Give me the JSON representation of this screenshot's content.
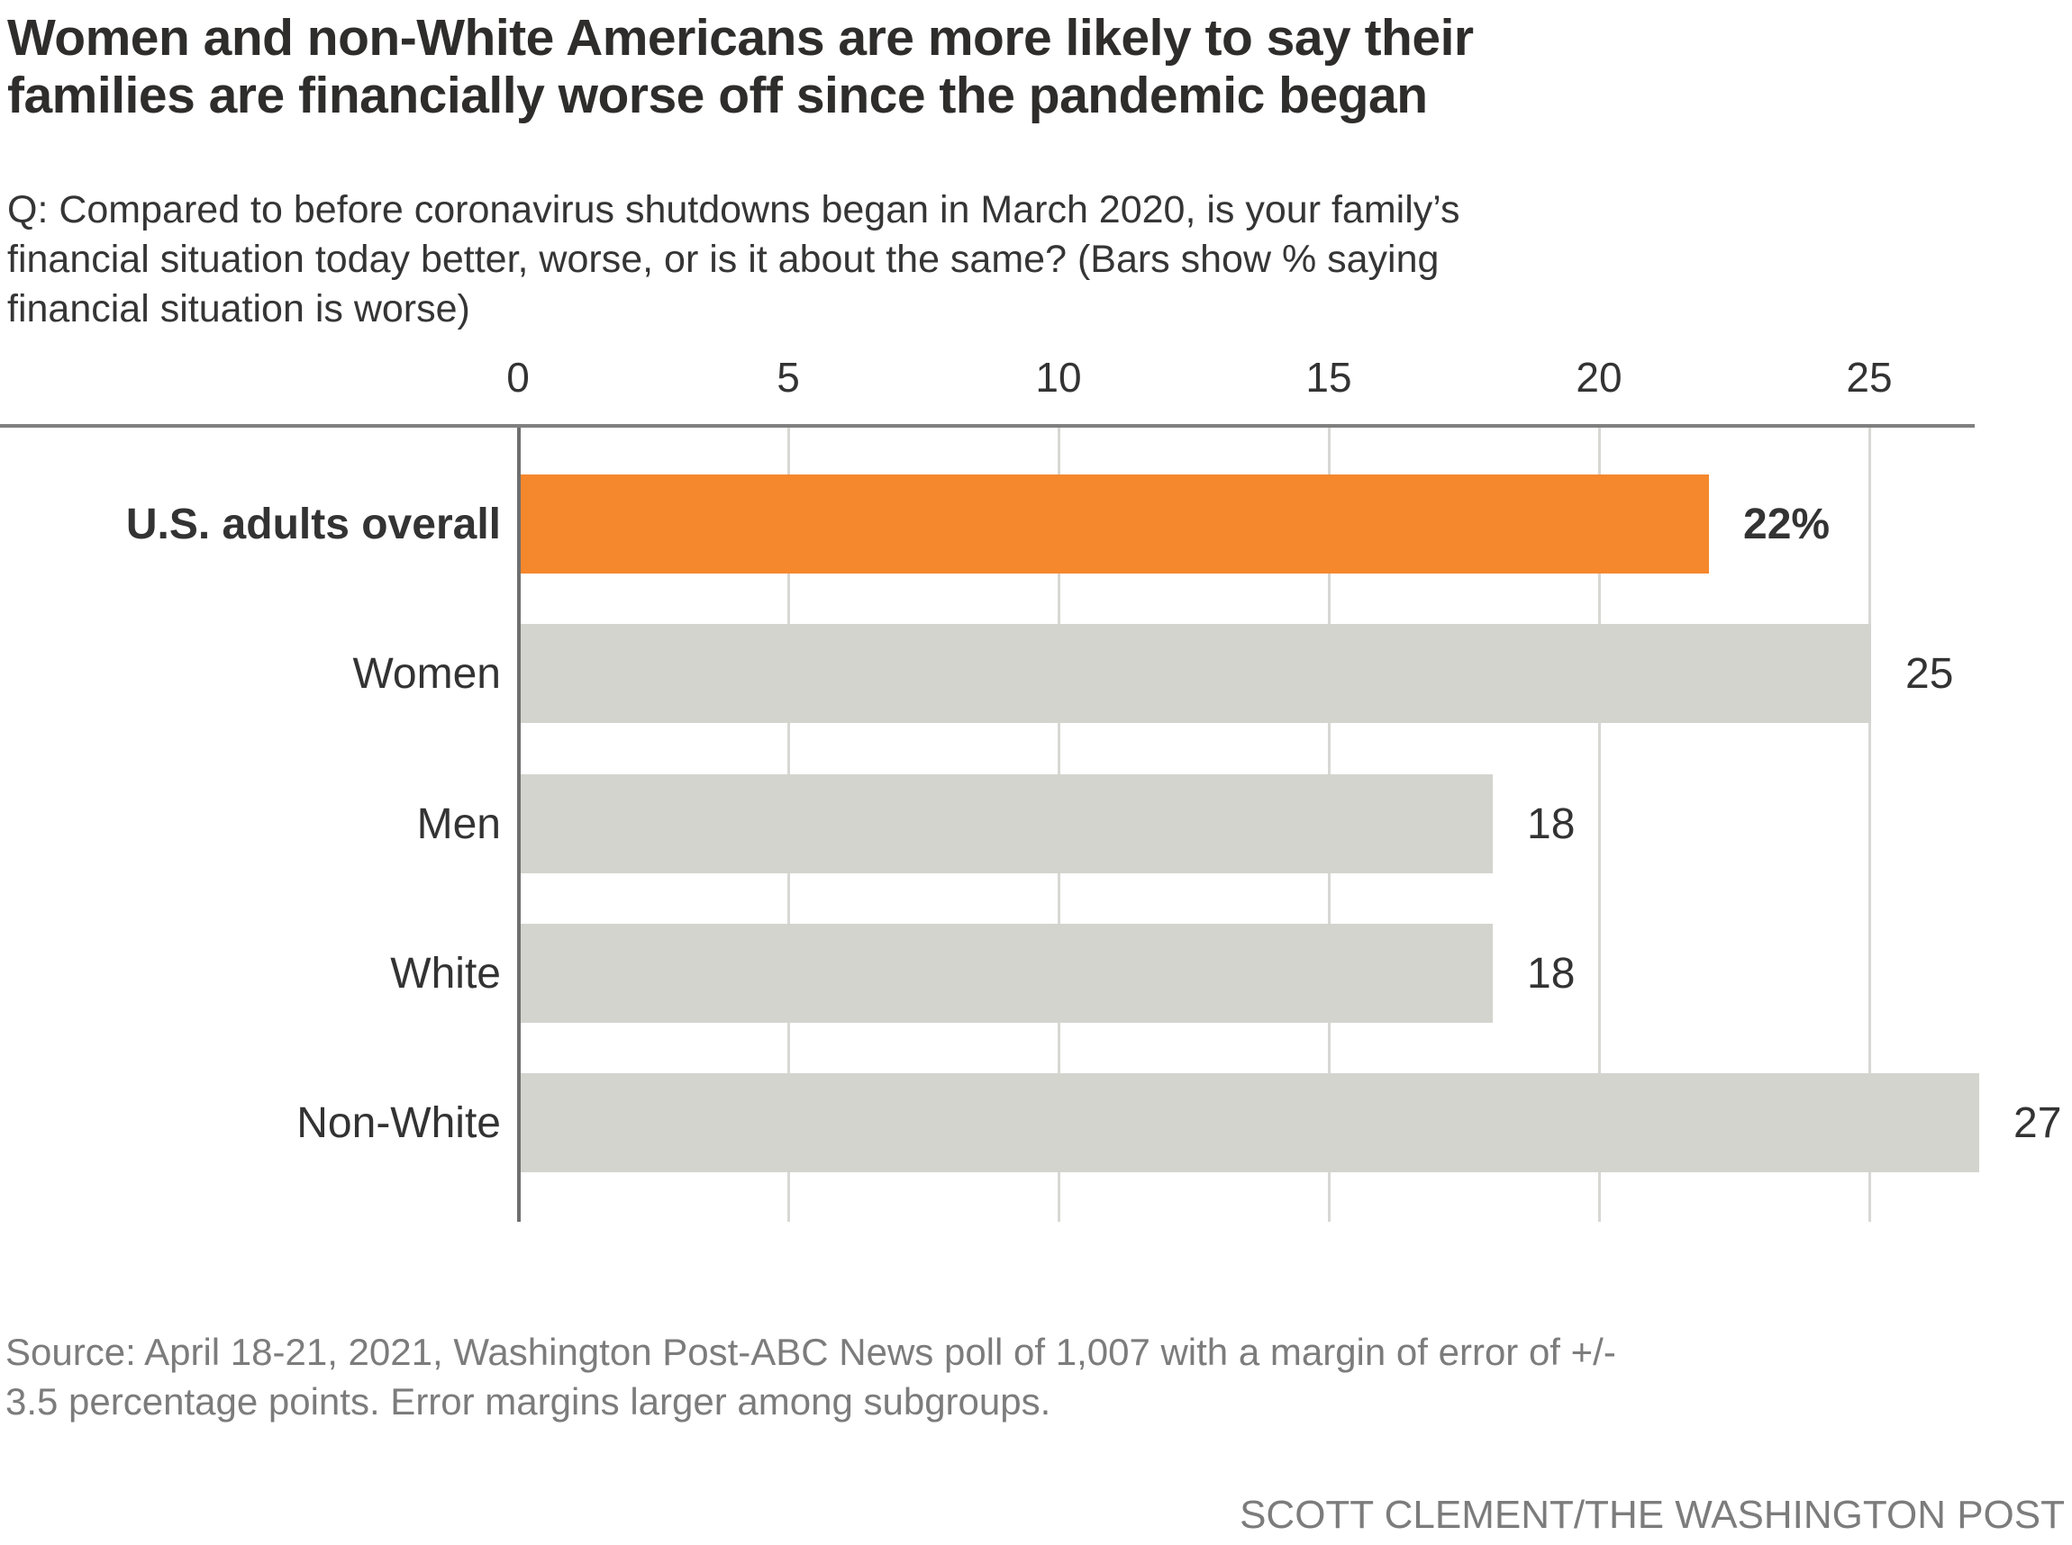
{
  "header": {
    "title_lines": [
      "Women and non-White Americans are more likely to say their",
      "families are financially worse off since the pandemic began"
    ],
    "subtitle_lines": [
      "Q: Compared to before coronavirus shutdowns began in March 2020, is your family’s",
      "financial situation today better, worse, or is it about the same? (Bars show % saying",
      "financial situation is worse)"
    ]
  },
  "chart_data": {
    "type": "bar",
    "orientation": "horizontal",
    "categories": [
      "U.S. adults overall",
      "Women",
      "Men",
      "White",
      "Non-White"
    ],
    "values": [
      22,
      25,
      18,
      18,
      27
    ],
    "value_labels": [
      "22%",
      "25",
      "18",
      "18",
      "27"
    ],
    "emphasized": [
      true,
      false,
      false,
      false,
      false
    ],
    "highlighted_category": "U.S. adults overall",
    "xticks": [
      0,
      5,
      10,
      15,
      20,
      25
    ],
    "xlim": [
      0,
      28
    ],
    "grid": true,
    "legend": "none",
    "colors": {
      "highlight_bar": "#F5872D",
      "bar": "#D4D4CE",
      "axis_top_line": "#808080",
      "zero_line": "#6F6F6F",
      "gridline": "#D7D7D3",
      "text_dark": "#333333",
      "text_gray": "#7C7C7C"
    }
  },
  "footer": {
    "source_lines": [
      "Source: April 18-21, 2021, Washington Post-ABC News poll of 1,007 with a margin of error of +/-",
      "3.5 percentage points. Error margins larger among subgroups."
    ],
    "credit": "SCOTT CLEMENT/THE WASHINGTON POST"
  }
}
